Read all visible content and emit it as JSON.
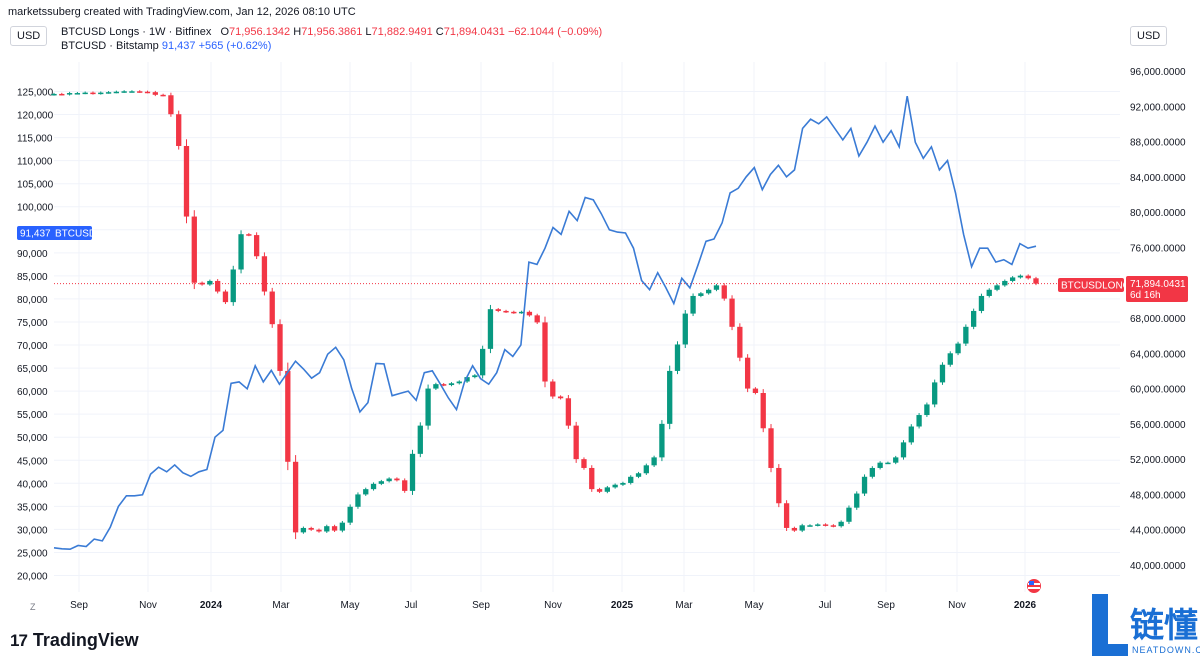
{
  "header": {
    "creator_text": "marketssuberg created with TradingView.com, Jan 12, 2026 08:10 UTC",
    "currency_left": "USD",
    "currency_right": "USD"
  },
  "legend": {
    "main_name": "BTCUSD Longs · 1W · Bitfinex",
    "o_label": "O",
    "o_value": "71,956.1342",
    "h_label": "H",
    "h_value": "71,956.3861",
    "l_label": "L",
    "l_value": "71,882.9491",
    "c_label": "C",
    "c_value": "71,894.0431",
    "change": "−62.1044 (−0.09%)",
    "second_name": "BTCUSD · Bitstamp",
    "second_value": "91,437",
    "second_change": "+565 (+0.62%)"
  },
  "badges": {
    "btcusd_value": "91,437",
    "btcusd_name": "BTCUSD",
    "longs_name": "BTCUSDLONGS",
    "longs_value": "71,894.0431",
    "longs_countdown": "6d 16h"
  },
  "footer": {
    "logo_text": "TradingView",
    "logo_mark": "17",
    "watermark_name": "链懂",
    "watermark_sub": "NEATDOWN.COM",
    "zone_label": "Z"
  },
  "colors": {
    "up": "#089981",
    "down": "#f23645",
    "btc_line": "#2962ff",
    "line_blue": "#3a7bd5",
    "grid": "#f0f3fa",
    "dotted": "#f23645"
  },
  "chart_data": {
    "type": "line",
    "x_tick_labels": [
      "Sep",
      "Nov",
      "2024",
      "Mar",
      "May",
      "Jul",
      "Sep",
      "Nov",
      "2025",
      "Mar",
      "May",
      "Jul",
      "Sep",
      "Nov",
      "2026"
    ],
    "left_axis": {
      "label": "USD",
      "ticks": [
        "125,000",
        "120,000",
        "115,000",
        "110,000",
        "105,000",
        "100,000",
        "95,000",
        "90,000",
        "85,000",
        "80,000",
        "75,000",
        "70,000",
        "65,000",
        "60,000",
        "55,000",
        "50,000",
        "45,000",
        "40,000",
        "35,000",
        "30,000",
        "25,000",
        "20,000"
      ]
    },
    "right_axis": {
      "label": "USD",
      "ticks": [
        "96,000.0000",
        "92,000.0000",
        "88,000.0000",
        "84,000.0000",
        "80,000.0000",
        "76,000.0000",
        "72,000.0000",
        "68,000.0000",
        "64,000.0000",
        "60,000.0000",
        "56,000.0000",
        "52,000.0000",
        "48,000.0000",
        "44,000.0000",
        "40,000.0000"
      ]
    },
    "series": [
      {
        "name": "BTCUSD · Bitstamp",
        "axis": "left",
        "values": [
          26000,
          25800,
          25700,
          26500,
          26300,
          27900,
          27500,
          30500,
          35000,
          37300,
          37300,
          37500,
          42000,
          43500,
          42500,
          44000,
          42300,
          41500,
          42500,
          43000,
          50000,
          51500,
          61700,
          62000,
          60500,
          65500,
          62000,
          64500,
          61500,
          64000,
          66500,
          64800,
          62800,
          64000,
          68000,
          69500,
          66800,
          60500,
          55500,
          57500,
          66000,
          65900,
          59000,
          59500,
          60000,
          58000,
          64000,
          64400,
          61500,
          58500,
          56000,
          62000,
          65500,
          62700,
          61500,
          64000,
          69000,
          67500,
          70000,
          88000,
          87500,
          91000,
          95500,
          94000,
          99000,
          97000,
          102000,
          101500,
          98500,
          95000,
          94500,
          94300,
          91000,
          84000,
          82000,
          85700,
          82500,
          79000,
          84500,
          82400,
          87300,
          92500,
          93000,
          96500,
          103000,
          104000,
          106500,
          108500,
          103700,
          107000,
          109000,
          106500,
          108000,
          117000,
          119000,
          118000,
          119500,
          117000,
          114500,
          117000,
          111000,
          114000,
          117500,
          114000,
          116500,
          113000,
          124000,
          114000,
          110500,
          113000,
          108000,
          110000,
          103000,
          94000,
          87000,
          91000,
          91000,
          88000,
          88500,
          87500,
          92000,
          91000,
          91437
        ]
      },
      {
        "name": "BTCUSD Longs · 1W · Bitfinex",
        "axis": "right",
        "type": "candlestick",
        "closes": [
          93400,
          93350,
          93500,
          93500,
          93550,
          93450,
          93550,
          93600,
          93650,
          93700,
          93700,
          93650,
          93600,
          93300,
          93250,
          91100,
          87500,
          79500,
          72000,
          71800,
          72200,
          71000,
          69800,
          73500,
          77500,
          77400,
          75000,
          71000,
          67300,
          62000,
          51700,
          43700,
          44200,
          44000,
          43800,
          44400,
          43900,
          44800,
          46600,
          48000,
          48600,
          49200,
          49500,
          49800,
          49600,
          48400,
          52600,
          55800,
          60000,
          60500,
          60400,
          60600,
          60800,
          61300,
          61500,
          64500,
          69000,
          68800,
          68700,
          68600,
          68700,
          68300,
          67500,
          60800,
          59100,
          58900,
          55800,
          52000,
          51000,
          48600,
          48300,
          48800,
          49100,
          49300,
          50000,
          50400,
          51300,
          52200,
          56000,
          62000,
          65000,
          68500,
          70500,
          70800,
          71200,
          71700,
          70200,
          67000,
          63500,
          60000,
          59500,
          55500,
          51000,
          47000,
          44200,
          43900,
          44500,
          44500,
          44600,
          44500,
          44400,
          44900,
          46500,
          48100,
          50000,
          51000,
          51600,
          51600,
          52200,
          53900,
          55700,
          57000,
          58200,
          60700,
          62700,
          64000,
          65100,
          67000,
          68800,
          70500,
          71200,
          71700,
          72200,
          72600,
          72800,
          72500,
          71894
        ]
      }
    ],
    "last_values": {
      "BTCUSD": 91437,
      "BTCUSDLONGS": 71894.0431
    }
  }
}
